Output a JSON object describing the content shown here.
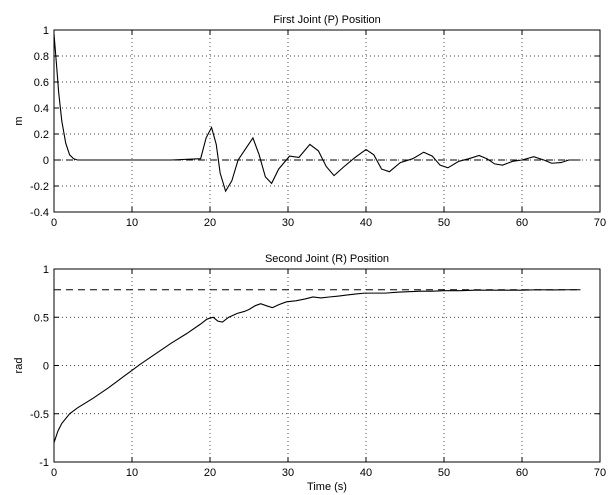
{
  "chart_data": [
    {
      "type": "line",
      "title": "First Joint (P) Position",
      "xlabel": "",
      "ylabel": "m",
      "xlim": [
        0,
        70
      ],
      "ylim": [
        -0.4,
        1
      ],
      "xticks": [
        0,
        10,
        20,
        30,
        40,
        50,
        60,
        70
      ],
      "yticks": [
        -0.4,
        -0.2,
        0,
        0.2,
        0.4,
        0.6,
        0.8,
        1
      ],
      "ytick_labels": [
        "-0.4",
        "-0.2",
        "0",
        "0.2",
        "0.4",
        "0.6",
        "0.8",
        "1"
      ],
      "grid": true,
      "series": [
        {
          "style": "solid",
          "x": [
            0,
            0.3,
            0.6,
            1.0,
            1.5,
            2.0,
            2.5,
            3.0,
            5,
            10,
            15,
            18.8,
            19.5,
            20.2,
            20.8,
            21.3,
            22.0,
            22.8,
            23.6,
            24.5,
            25.5,
            26.3,
            27.1,
            27.9,
            28.8,
            30.2,
            31.4,
            32.8,
            33.9,
            34.9,
            35.9,
            37.2,
            38.6,
            40.0,
            41.0,
            42.0,
            43.0,
            44.4,
            46.0,
            47.4,
            48.5,
            49.5,
            50.5,
            51.9,
            53.2,
            54.5,
            55.5,
            56.5,
            57.5,
            58.8,
            60.0,
            61.5,
            62.8,
            63.8,
            65.0,
            66.0,
            67.5
          ],
          "y": [
            0.97,
            0.75,
            0.52,
            0.3,
            0.13,
            0.04,
            0.01,
            0.0,
            0.0,
            0.0,
            0.0,
            0.01,
            0.17,
            0.25,
            0.12,
            -0.1,
            -0.24,
            -0.16,
            0.0,
            0.08,
            0.17,
            0.04,
            -0.13,
            -0.18,
            -0.07,
            0.03,
            0.02,
            0.12,
            0.07,
            -0.05,
            -0.12,
            -0.05,
            0.02,
            0.08,
            0.04,
            -0.07,
            -0.09,
            -0.02,
            0.01,
            0.06,
            0.03,
            -0.04,
            -0.06,
            -0.01,
            0.01,
            0.035,
            0.01,
            -0.03,
            -0.04,
            -0.01,
            0.0,
            0.025,
            0.0,
            -0.025,
            -0.02,
            0.0,
            0.0
          ]
        },
        {
          "style": "dashed",
          "x": [
            0,
            67.5
          ],
          "y": [
            0,
            0
          ]
        }
      ]
    },
    {
      "type": "line",
      "title": "Second Joint (R) Position",
      "xlabel": "Time (s)",
      "ylabel": "rad",
      "xlim": [
        0,
        70
      ],
      "ylim": [
        -1,
        1
      ],
      "xticks": [
        0,
        10,
        20,
        30,
        40,
        50,
        60,
        70
      ],
      "yticks": [
        -1,
        -0.5,
        0,
        0.5,
        1
      ],
      "ytick_labels": [
        "-1",
        "-0.5",
        "0",
        "0.5",
        "1"
      ],
      "grid": true,
      "series": [
        {
          "style": "solid",
          "x": [
            0,
            0.5,
            1,
            2,
            3,
            5,
            7,
            9,
            11,
            13,
            15,
            17,
            18.8,
            19.6,
            20.4,
            21.0,
            21.6,
            22.4,
            23.5,
            24.4,
            25.0,
            25.8,
            26.5,
            27.2,
            28.0,
            28.8,
            29.8,
            31.0,
            32.2,
            33.2,
            34.2,
            35.3,
            36.5,
            37.5,
            38.6,
            39.8,
            41.0,
            42.5,
            44.0,
            45.5,
            47.0,
            48.5,
            50.0,
            52.0,
            54.0,
            56.0,
            58.0,
            60.0,
            62.0,
            64.0,
            66.0,
            67.5
          ],
          "y": [
            -0.8,
            -0.68,
            -0.6,
            -0.5,
            -0.44,
            -0.34,
            -0.23,
            -0.11,
            0.01,
            0.12,
            0.23,
            0.33,
            0.43,
            0.48,
            0.5,
            0.46,
            0.45,
            0.5,
            0.54,
            0.56,
            0.58,
            0.62,
            0.64,
            0.62,
            0.6,
            0.63,
            0.66,
            0.67,
            0.69,
            0.71,
            0.7,
            0.71,
            0.72,
            0.73,
            0.74,
            0.75,
            0.75,
            0.75,
            0.76,
            0.765,
            0.77,
            0.77,
            0.775,
            0.775,
            0.78,
            0.78,
            0.78,
            0.78,
            0.785,
            0.783,
            0.785,
            0.785
          ]
        },
        {
          "style": "dashed",
          "x": [
            0,
            67.5
          ],
          "y": [
            0.785,
            0.785
          ]
        }
      ]
    }
  ]
}
